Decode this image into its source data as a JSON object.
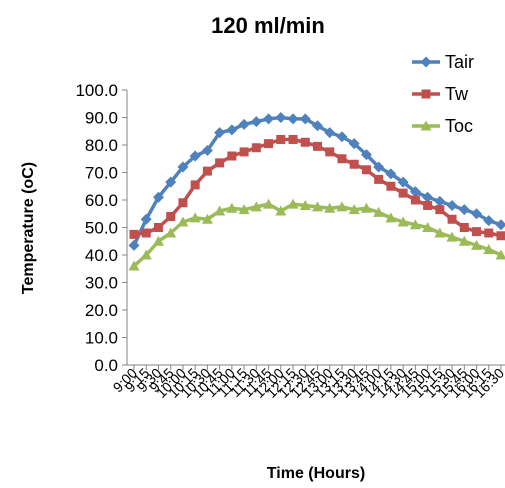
{
  "chart_data": {
    "type": "line",
    "title": "120 ml/min",
    "xlabel": "Time (Hours)",
    "ylabel": "Temperature (oC)",
    "ylim": [
      0,
      100
    ],
    "y_ticks": [
      "0.0",
      "10.0",
      "20.0",
      "30.0",
      "40.0",
      "50.0",
      "60.0",
      "70.0",
      "80.0",
      "90.0",
      "100.0"
    ],
    "x_tick_labels": [
      "9:00",
      "9:15",
      "9:30",
      "9:45",
      "10:00",
      "10:15",
      "10:30",
      "10:45",
      "11:00",
      "11:15",
      "11:30",
      "11:45",
      "12:00",
      "12:15",
      "12:30",
      "12:45",
      "13:00",
      "13:15",
      "13:30",
      "13:45",
      "14:00",
      "14:15",
      "14:30",
      "14:45",
      "15:00",
      "15:15",
      "15:30",
      "15:45",
      "16:00",
      "16:15",
      "16:30"
    ],
    "legend_position": "top-right",
    "grid": false,
    "series": [
      {
        "name": "Tair",
        "color": "#4f81bd",
        "marker": "diamond",
        "values": [
          43.5,
          53,
          61,
          66.5,
          72,
          76,
          78,
          84.5,
          85.5,
          87.5,
          88.5,
          89.5,
          90,
          89.5,
          89.5,
          87,
          84.5,
          83,
          80.5,
          76.5,
          72,
          69.5,
          66.5,
          63,
          61,
          59.5,
          58,
          56.5,
          55,
          52.5,
          51
        ]
      },
      {
        "name": "Tw",
        "color": "#c0504d",
        "marker": "square",
        "values": [
          47.5,
          48,
          50,
          54,
          59,
          65.5,
          70.5,
          73.5,
          76,
          77.5,
          79,
          80.5,
          82,
          82,
          81,
          79.5,
          77.5,
          75,
          73,
          71,
          67.5,
          65,
          62.5,
          60,
          58,
          56.5,
          53,
          50,
          48.5,
          48,
          47
        ]
      },
      {
        "name": "Toc",
        "color": "#9bbb59",
        "marker": "triangle",
        "values": [
          36,
          40,
          45,
          48,
          52,
          53.5,
          53,
          56,
          57,
          56.5,
          57.5,
          58.5,
          56,
          58.5,
          58,
          57.5,
          57,
          57.5,
          56.5,
          57,
          55.5,
          53.5,
          52,
          51,
          50,
          48,
          46.5,
          45,
          43.5,
          42,
          40
        ]
      }
    ]
  }
}
